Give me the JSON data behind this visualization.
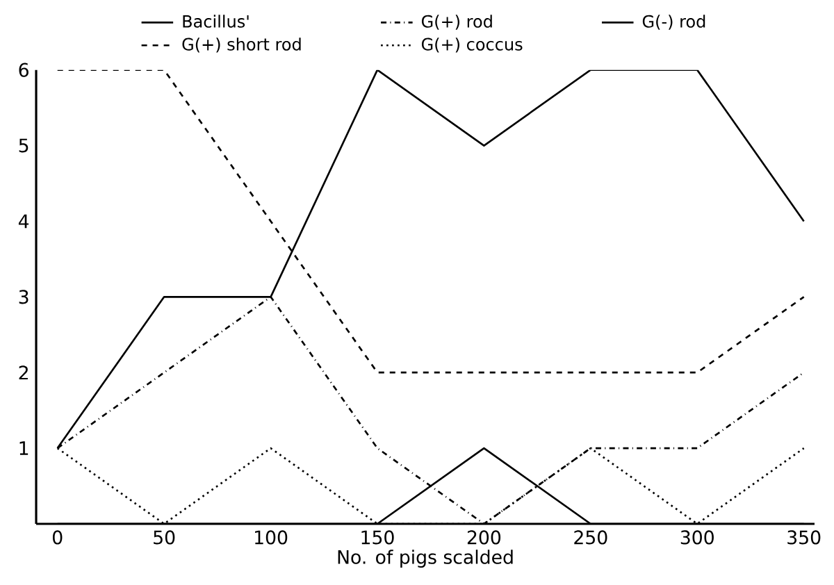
{
  "chart_data": {
    "type": "line",
    "xlabel": "No. of pigs scalded",
    "x": [
      0,
      50,
      100,
      150,
      200,
      250,
      300,
      350
    ],
    "xlim": [
      -10,
      355
    ],
    "ylim": [
      0,
      6
    ],
    "xticks": [
      0,
      50,
      100,
      150,
      200,
      250,
      300,
      350
    ],
    "yticks": [
      1,
      2,
      3,
      4,
      5,
      6
    ],
    "grid": false,
    "legend": "top",
    "marker": "none",
    "series": [
      {
        "name": "Bacillus'",
        "color": "#000000",
        "line_style": "solid",
        "values": [
          1,
          3,
          3,
          6,
          5,
          6,
          6,
          4
        ]
      },
      {
        "name": "G(+) rod",
        "color": "#000000",
        "line_style": "dashdot",
        "values": [
          1,
          2,
          3,
          1,
          0,
          1,
          1,
          2
        ]
      },
      {
        "name": "G(-) rod",
        "color": "#000000",
        "line_style": "solid",
        "values": [
          0,
          0,
          0,
          0,
          1,
          0,
          0,
          0
        ]
      },
      {
        "name": "G(+) short rod",
        "color": "#000000",
        "line_style": "dashed",
        "values": [
          6,
          6,
          4,
          2,
          2,
          2,
          2,
          3
        ]
      },
      {
        "name": "G(+) coccus",
        "color": "#000000",
        "line_style": "dotted",
        "values": [
          1,
          0,
          1,
          0,
          0,
          1,
          0,
          1
        ]
      }
    ]
  }
}
